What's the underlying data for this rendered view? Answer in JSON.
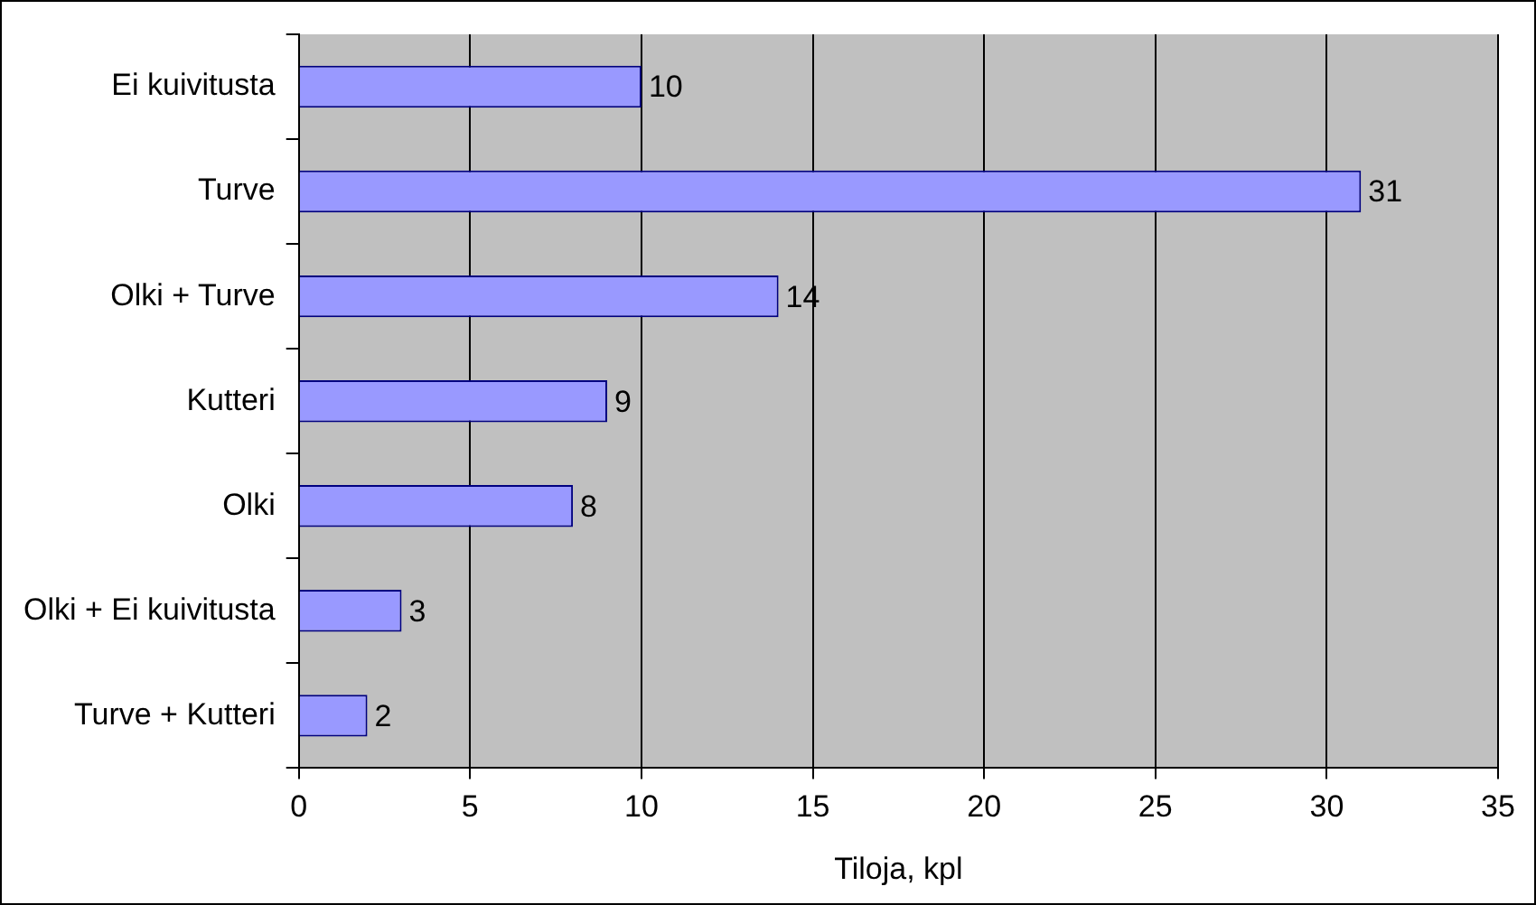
{
  "chart_data": {
    "type": "bar",
    "orientation": "horizontal",
    "xlabel": "Tiloja, kpl",
    "categories": [
      "Ei kuivitusta",
      "Turve",
      "Olki + Turve",
      "Kutteri",
      "Olki",
      "Olki + Ei kuivitusta",
      "Turve + Kutteri"
    ],
    "values": [
      10,
      31,
      14,
      9,
      8,
      3,
      2
    ],
    "color": "#9999ff",
    "xlim": [
      0,
      35
    ],
    "xticks": [
      0,
      5,
      10,
      15,
      20,
      25,
      30,
      35
    ],
    "grid": "x",
    "data_labels": true,
    "legend": false
  }
}
